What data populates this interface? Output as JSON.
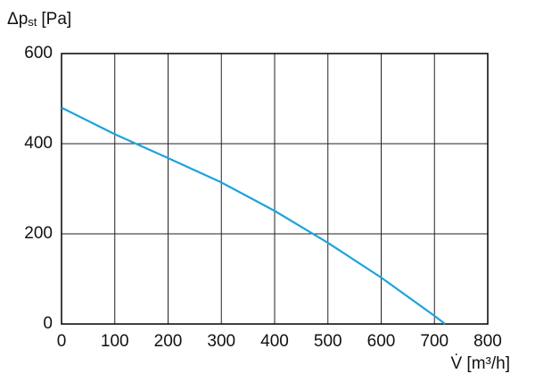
{
  "chart_data": {
    "type": "line",
    "y_label": {
      "symbol": "Δp",
      "subscript": "st",
      "unit": "[Pa]"
    },
    "x_label": "V̇ [m³/h]",
    "series": [
      {
        "color": "#1aa3e0",
        "x": [
          0,
          100,
          200,
          300,
          400,
          500,
          600,
          700,
          720
        ],
        "values": [
          480,
          421,
          368,
          314,
          251,
          180,
          103,
          18,
          0
        ]
      }
    ],
    "xlim": [
      0,
      800
    ],
    "xticks": [
      0,
      100,
      200,
      300,
      400,
      500,
      600,
      700,
      800
    ],
    "ylim": [
      0,
      600
    ],
    "yticks": [
      0,
      200,
      400,
      600
    ],
    "grid": true
  }
}
